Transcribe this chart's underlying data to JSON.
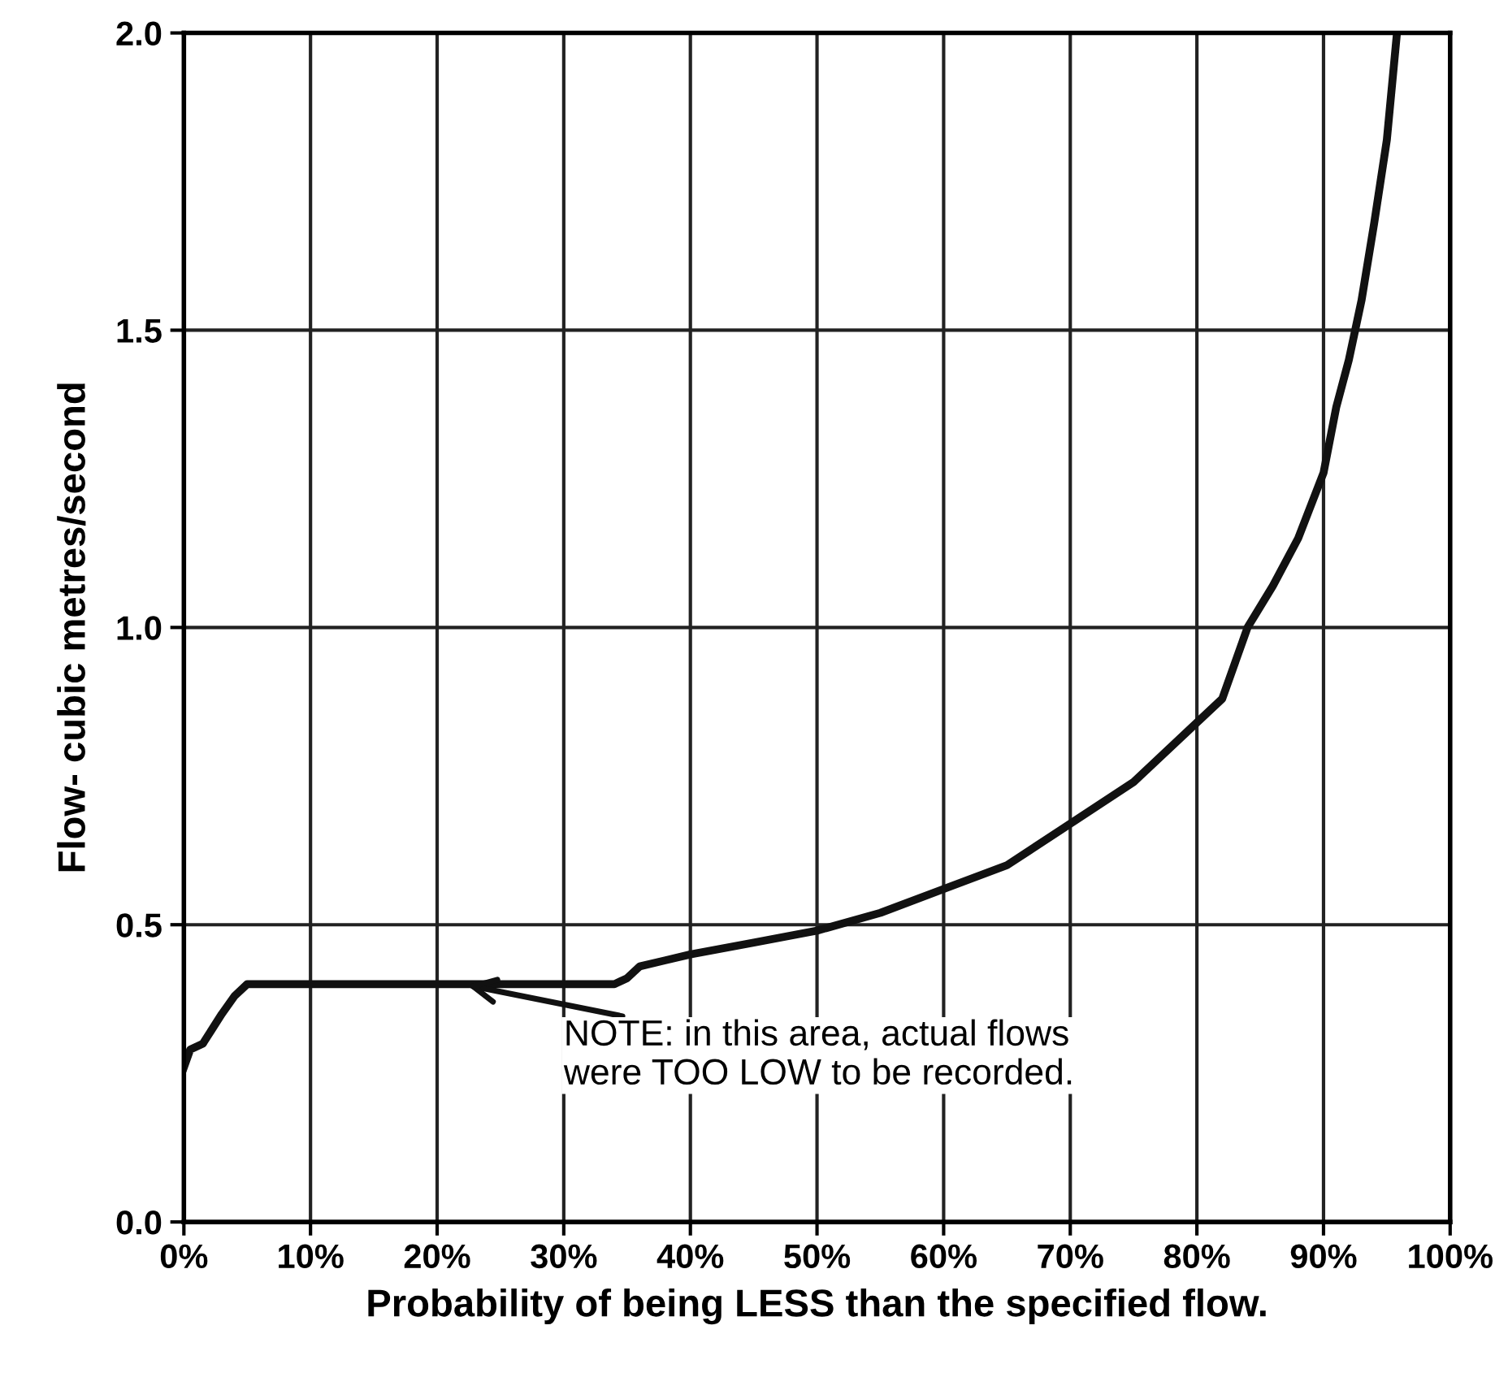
{
  "chart_data": {
    "type": "line",
    "xlabel": "Probability of being LESS than the specified flow.",
    "ylabel": "Flow- cubic metres/second",
    "series": [
      {
        "color": "#111111",
        "x": [
          0,
          0.5,
          1.5,
          3,
          4,
          5,
          10,
          20,
          30,
          34,
          35,
          36,
          38,
          40,
          45,
          50,
          55,
          60,
          65,
          70,
          75,
          80,
          82,
          84,
          86,
          88,
          90,
          91,
          92,
          93,
          94,
          95,
          95.8
        ],
        "values": [
          0.26,
          0.29,
          0.3,
          0.35,
          0.38,
          0.4,
          0.4,
          0.4,
          0.4,
          0.4,
          0.41,
          0.43,
          0.44,
          0.45,
          0.47,
          0.49,
          0.52,
          0.56,
          0.6,
          0.67,
          0.74,
          0.84,
          0.88,
          1.0,
          1.07,
          1.15,
          1.26,
          1.37,
          1.45,
          1.55,
          1.68,
          1.82,
          2.0
        ]
      }
    ],
    "xlim": [
      0,
      100
    ],
    "ylim": [
      0,
      2.0
    ],
    "xticks": [
      {
        "value": 0,
        "label": "0%"
      },
      {
        "value": 10,
        "label": "10%"
      },
      {
        "value": 20,
        "label": "20%"
      },
      {
        "value": 30,
        "label": "30%"
      },
      {
        "value": 40,
        "label": "40%"
      },
      {
        "value": 50,
        "label": "50%"
      },
      {
        "value": 60,
        "label": "60%"
      },
      {
        "value": 70,
        "label": "70%"
      },
      {
        "value": 80,
        "label": "80%"
      },
      {
        "value": 90,
        "label": "90%"
      },
      {
        "value": 100,
        "label": "100%"
      }
    ],
    "yticks": [
      {
        "value": 0,
        "label": "0.0"
      },
      {
        "value": 0.5,
        "label": "0.5"
      },
      {
        "value": 1,
        "label": "1.0"
      },
      {
        "value": 1.5,
        "label": "1.5"
      },
      {
        "value": 2,
        "label": "2.0"
      }
    ],
    "grid": true,
    "marker": "none",
    "line_style": "solid",
    "annotations": [
      {
        "text": "NOTE: in this area, actual flows\nwere TOO LOW to be recorded.",
        "x": 22,
        "y": 0.4
      }
    ]
  }
}
